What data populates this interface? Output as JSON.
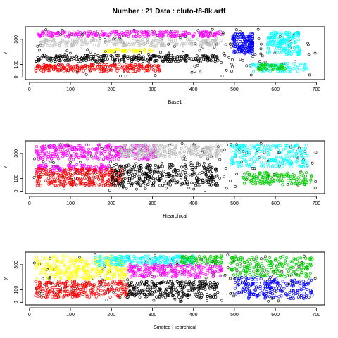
{
  "title": "Number : 21    Data : cluto-t8-8k.arff",
  "palette": {
    "black": "#000000",
    "red": "#ff0000",
    "magenta": "#ff00ff",
    "gray": "#bebebe",
    "yellow": "#ffff00",
    "blue": "#0000ff",
    "cyan": "#00ffff",
    "green": "#00cd00"
  },
  "chart_data": [
    {
      "type": "scatter",
      "xlabel": "Base1",
      "ylabel": "y",
      "xlim": [
        -10,
        720
      ],
      "ylim": [
        -20,
        400
      ],
      "xticks": [
        0,
        100,
        200,
        300,
        400,
        500,
        600,
        700
      ],
      "yticks": [
        0,
        100,
        300
      ],
      "noise_color": "black",
      "clusters": [
        {
          "color": "magenta",
          "kind": "rect",
          "x0": 20,
          "x1": 470,
          "y0": 320,
          "y1": 365,
          "n": 240
        },
        {
          "color": "gray",
          "kind": "rect",
          "x0": 25,
          "x1": 470,
          "y0": 245,
          "y1": 305,
          "n": 230
        },
        {
          "color": "yellow",
          "kind": "rect",
          "x0": 180,
          "x1": 300,
          "y0": 200,
          "y1": 220,
          "n": 45
        },
        {
          "color": "black",
          "kind": "rect",
          "x0": 15,
          "x1": 460,
          "y0": 125,
          "y1": 175,
          "n": 240
        },
        {
          "color": "red",
          "kind": "rect",
          "x0": 15,
          "x1": 320,
          "y0": 45,
          "y1": 100,
          "n": 220
        },
        {
          "color": "blue",
          "kind": "rect",
          "x0": 495,
          "x1": 545,
          "y0": 185,
          "y1": 345,
          "n": 150
        },
        {
          "color": "cyan",
          "kind": "rect",
          "x0": 580,
          "x1": 660,
          "y0": 180,
          "y1": 360,
          "n": 160
        },
        {
          "color": "cyan",
          "kind": "rect",
          "x0": 540,
          "x1": 680,
          "y0": 40,
          "y1": 110,
          "n": 80
        },
        {
          "color": "green",
          "kind": "rect",
          "x0": 555,
          "x1": 625,
          "y0": 55,
          "y1": 100,
          "n": 50
        }
      ]
    },
    {
      "type": "scatter",
      "xlabel": "Hiearchical",
      "ylabel": "y",
      "xlim": [
        -10,
        720
      ],
      "ylim": [
        -20,
        400
      ],
      "xticks": [
        0,
        100,
        200,
        300,
        400,
        500,
        600,
        700
      ],
      "yticks": [
        0,
        100,
        300
      ],
      "noise_color": "black",
      "clusters": [
        {
          "color": "magenta",
          "kind": "rect",
          "x0": 15,
          "x1": 310,
          "y0": 250,
          "y1": 370,
          "n": 300
        },
        {
          "color": "gray",
          "kind": "rect",
          "x0": 220,
          "x1": 470,
          "y0": 270,
          "y1": 370,
          "n": 250
        },
        {
          "color": "magenta",
          "kind": "rect",
          "x0": 15,
          "x1": 200,
          "y0": 160,
          "y1": 210,
          "n": 90
        },
        {
          "color": "red",
          "kind": "rect",
          "x0": 15,
          "x1": 230,
          "y0": 40,
          "y1": 180,
          "n": 260
        },
        {
          "color": "black",
          "kind": "rect",
          "x0": 200,
          "x1": 460,
          "y0": 40,
          "y1": 210,
          "n": 280
        },
        {
          "color": "cyan",
          "kind": "rect",
          "x0": 490,
          "x1": 680,
          "y0": 190,
          "y1": 370,
          "n": 220
        },
        {
          "color": "green",
          "kind": "rect",
          "x0": 520,
          "x1": 690,
          "y0": 50,
          "y1": 150,
          "n": 140
        }
      ]
    },
    {
      "type": "scatter",
      "xlabel": "Smoted Hiearchical",
      "ylabel": "y",
      "xlim": [
        -10,
        720
      ],
      "ylim": [
        -20,
        400
      ],
      "xticks": [
        0,
        100,
        200,
        300,
        400,
        500,
        600,
        700
      ],
      "yticks": [
        0,
        100,
        300
      ],
      "noise_color": "black",
      "clusters": [
        {
          "color": "yellow",
          "kind": "rect",
          "x0": 15,
          "x1": 240,
          "y0": 180,
          "y1": 370,
          "n": 280
        },
        {
          "color": "cyan",
          "kind": "rect",
          "x0": 160,
          "x1": 400,
          "y0": 290,
          "y1": 370,
          "n": 180
        },
        {
          "color": "magenta",
          "kind": "rect",
          "x0": 240,
          "x1": 470,
          "y0": 200,
          "y1": 300,
          "n": 200
        },
        {
          "color": "green",
          "kind": "rect",
          "x0": 370,
          "x1": 470,
          "y0": 310,
          "y1": 370,
          "n": 70
        },
        {
          "color": "red",
          "kind": "rect",
          "x0": 15,
          "x1": 240,
          "y0": 40,
          "y1": 170,
          "n": 250
        },
        {
          "color": "black",
          "kind": "rect",
          "x0": 240,
          "x1": 460,
          "y0": 40,
          "y1": 170,
          "n": 230
        },
        {
          "color": "green",
          "kind": "rect",
          "x0": 490,
          "x1": 690,
          "y0": 200,
          "y1": 370,
          "n": 200
        },
        {
          "color": "blue",
          "kind": "rect",
          "x0": 500,
          "x1": 690,
          "y0": 30,
          "y1": 200,
          "n": 200
        }
      ]
    }
  ]
}
